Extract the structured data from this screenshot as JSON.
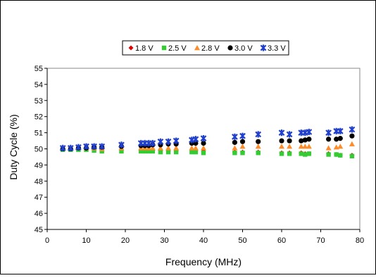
{
  "chart_data": {
    "type": "scatter",
    "title": "",
    "xlabel": "Frequency (MHz)",
    "ylabel": "Duty Cycle (%)",
    "xlim": [
      0,
      80
    ],
    "ylim": [
      45,
      55
    ],
    "x_ticks": [
      "0",
      "10",
      "20",
      "30",
      "40",
      "50",
      "60",
      "70",
      "80"
    ],
    "y_ticks": [
      "45",
      "46",
      "47",
      "48",
      "49",
      "50",
      "51",
      "52",
      "53",
      "54",
      "55"
    ],
    "grid": false,
    "legend_position": "top",
    "series": [
      {
        "name": "1.8 V",
        "marker": "diamond",
        "color": "#e00000",
        "points": [
          [
            4,
            50.0
          ],
          [
            6,
            50.0
          ],
          [
            8,
            50.0
          ],
          [
            10,
            50.0
          ],
          [
            12,
            50.0
          ],
          [
            14,
            49.95
          ],
          [
            19,
            49.95
          ],
          [
            24,
            49.95
          ],
          [
            26,
            49.95
          ],
          [
            27,
            49.9
          ],
          [
            29,
            49.9
          ],
          [
            31,
            49.85
          ],
          [
            33,
            49.85
          ],
          [
            38,
            49.85
          ],
          [
            40,
            49.85
          ],
          [
            48,
            49.8
          ],
          [
            50,
            49.8
          ],
          [
            54,
            49.8
          ],
          [
            60,
            49.75
          ],
          [
            62,
            49.75
          ],
          [
            65,
            49.75
          ],
          [
            66,
            49.7
          ],
          [
            67,
            49.7
          ],
          [
            72,
            49.7
          ],
          [
            74,
            49.65
          ],
          [
            75,
            49.6
          ],
          [
            78,
            49.6
          ]
        ]
      },
      {
        "name": "2.5 V",
        "marker": "square",
        "color": "#33cc33",
        "points": [
          [
            4,
            49.95
          ],
          [
            6,
            49.95
          ],
          [
            8,
            49.95
          ],
          [
            10,
            49.95
          ],
          [
            12,
            49.9
          ],
          [
            14,
            49.85
          ],
          [
            19,
            49.85
          ],
          [
            24,
            49.85
          ],
          [
            25,
            49.85
          ],
          [
            26,
            49.85
          ],
          [
            27,
            49.85
          ],
          [
            29,
            49.8
          ],
          [
            31,
            49.8
          ],
          [
            33,
            49.8
          ],
          [
            37,
            49.8
          ],
          [
            38,
            49.8
          ],
          [
            40,
            49.75
          ],
          [
            48,
            49.75
          ],
          [
            50,
            49.75
          ],
          [
            54,
            49.75
          ],
          [
            60,
            49.7
          ],
          [
            62,
            49.7
          ],
          [
            65,
            49.7
          ],
          [
            66,
            49.65
          ],
          [
            67,
            49.7
          ],
          [
            72,
            49.65
          ],
          [
            74,
            49.65
          ],
          [
            75,
            49.6
          ],
          [
            78,
            49.55
          ]
        ]
      },
      {
        "name": "2.8 V",
        "marker": "triangle",
        "color": "#ff8c28",
        "points": [
          [
            4,
            50.05
          ],
          [
            6,
            50.05
          ],
          [
            8,
            50.05
          ],
          [
            10,
            50.05
          ],
          [
            12,
            50.05
          ],
          [
            14,
            50.0
          ],
          [
            19,
            50.05
          ],
          [
            24,
            50.05
          ],
          [
            25,
            50.05
          ],
          [
            26,
            50.05
          ],
          [
            27,
            50.05
          ],
          [
            29,
            50.05
          ],
          [
            31,
            50.05
          ],
          [
            33,
            50.05
          ],
          [
            37,
            50.05
          ],
          [
            38,
            50.05
          ],
          [
            40,
            50.05
          ],
          [
            48,
            50.05
          ],
          [
            50,
            50.15
          ],
          [
            54,
            50.15
          ],
          [
            60,
            50.15
          ],
          [
            62,
            50.15
          ],
          [
            65,
            50.15
          ],
          [
            66,
            50.15
          ],
          [
            67,
            50.15
          ],
          [
            72,
            50.05
          ],
          [
            74,
            50.1
          ],
          [
            75,
            50.15
          ],
          [
            78,
            50.3
          ]
        ]
      },
      {
        "name": "3.0 V",
        "marker": "circle",
        "color": "#000000",
        "points": [
          [
            4,
            50.0
          ],
          [
            6,
            50.0
          ],
          [
            8,
            50.05
          ],
          [
            10,
            50.05
          ],
          [
            12,
            50.1
          ],
          [
            14,
            50.1
          ],
          [
            19,
            50.15
          ],
          [
            24,
            50.2
          ],
          [
            25,
            50.2
          ],
          [
            26,
            50.2
          ],
          [
            27,
            50.25
          ],
          [
            29,
            50.25
          ],
          [
            31,
            50.3
          ],
          [
            33,
            50.3
          ],
          [
            37,
            50.35
          ],
          [
            38,
            50.35
          ],
          [
            40,
            50.35
          ],
          [
            48,
            50.4
          ],
          [
            50,
            50.45
          ],
          [
            54,
            50.45
          ],
          [
            60,
            50.5
          ],
          [
            62,
            50.5
          ],
          [
            65,
            50.5
          ],
          [
            66,
            50.55
          ],
          [
            67,
            50.6
          ],
          [
            72,
            50.6
          ],
          [
            74,
            50.6
          ],
          [
            75,
            50.65
          ],
          [
            78,
            50.8
          ]
        ]
      },
      {
        "name": "3.3 V",
        "marker": "star",
        "color": "#1f3fcc",
        "points": [
          [
            4,
            50.05
          ],
          [
            6,
            50.05
          ],
          [
            8,
            50.1
          ],
          [
            10,
            50.15
          ],
          [
            12,
            50.15
          ],
          [
            14,
            50.15
          ],
          [
            19,
            50.25
          ],
          [
            24,
            50.35
          ],
          [
            25,
            50.35
          ],
          [
            26,
            50.35
          ],
          [
            27,
            50.35
          ],
          [
            29,
            50.45
          ],
          [
            31,
            50.45
          ],
          [
            33,
            50.5
          ],
          [
            37,
            50.55
          ],
          [
            38,
            50.6
          ],
          [
            40,
            50.65
          ],
          [
            48,
            50.75
          ],
          [
            50,
            50.8
          ],
          [
            54,
            50.9
          ],
          [
            60,
            51.0
          ],
          [
            62,
            50.9
          ],
          [
            65,
            51.0
          ],
          [
            66,
            51.0
          ],
          [
            67,
            51.05
          ],
          [
            72,
            51.0
          ],
          [
            74,
            51.1
          ],
          [
            75,
            51.1
          ],
          [
            78,
            51.2
          ]
        ]
      }
    ]
  }
}
